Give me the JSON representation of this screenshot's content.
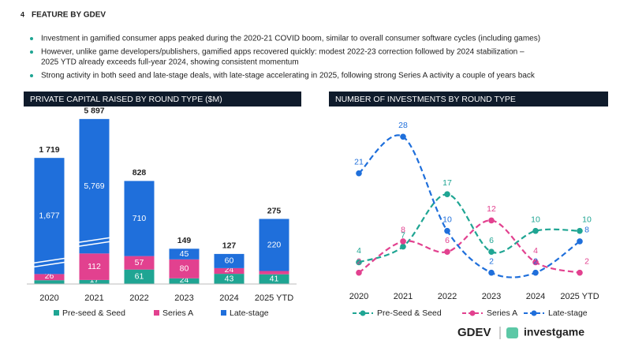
{
  "header": {
    "page_number": "4",
    "title": "FEATURE BY GDEV"
  },
  "bullets": [
    "Investment in gamified consumer apps peaked during the 2020-21 COVID boom, similar to overall consumer software cycles (including games)",
    "However, unlike game developers/publishers, gamified apps recovered quickly: modest 2022-23 correction followed by 2024 stabilization –",
    "2025 YTD already exceeds full-year 2024, showing consistent momentum",
    "Strong activity in both seed and late-stage deals, with late-stage accelerating in 2025, following strong Series A activity a couple of years back"
  ],
  "chart_data": [
    {
      "type": "bar",
      "stacked": true,
      "title": "PRIVATE CAPITAL RAISED BY ROUND TYPE ($M)",
      "categories": [
        "2020",
        "2021",
        "2022",
        "2023",
        "2024",
        "2025 YTD"
      ],
      "series": [
        {
          "name": "Pre-seed & Seed",
          "color": "#1fa593",
          "values": [
            16,
            17,
            61,
            24,
            43,
            41
          ],
          "value_labels": [
            null,
            "17",
            "61",
            "24",
            "43",
            "41"
          ]
        },
        {
          "name": "Series A",
          "color": "#e2418f",
          "values": [
            26,
            112,
            57,
            80,
            24,
            14
          ],
          "value_labels": [
            "26",
            "112",
            "57",
            "80",
            "24",
            null
          ]
        },
        {
          "name": "Late-stage",
          "color": "#1f6fdb",
          "values": [
            1677,
            5769,
            710,
            45,
            60,
            220
          ],
          "value_labels": [
            "1,677",
            "5,769",
            "710",
            "45",
            "60",
            "220"
          ]
        }
      ],
      "totals": [
        1719,
        5897,
        828,
        149,
        127,
        275
      ],
      "total_labels": [
        "1 719",
        "5 897",
        "828",
        "149",
        "127",
        "275"
      ],
      "legend": "bottom"
    },
    {
      "type": "line",
      "title": "NUMBER OF INVESTMENTS BY ROUND TYPE",
      "categories": [
        "2020",
        "2021",
        "2022",
        "2023",
        "2024",
        "2025 YTD"
      ],
      "series": [
        {
          "name": "Pre-Seed & Seed",
          "color": "#1fa593",
          "values": [
            4,
            7,
            17,
            6,
            10,
            10
          ]
        },
        {
          "name": "Series A",
          "color": "#e2418f",
          "values": [
            2,
            8,
            6,
            12,
            4,
            2
          ]
        },
        {
          "name": "Late-stage",
          "color": "#1f6fdb",
          "values": [
            21,
            28,
            10,
            2,
            2,
            8
          ]
        }
      ],
      "ylim": [
        0,
        30
      ],
      "smooth": true,
      "dashed": true,
      "legend": "bottom"
    }
  ],
  "footer": {
    "logos": [
      "GDEV",
      "investgame"
    ]
  }
}
